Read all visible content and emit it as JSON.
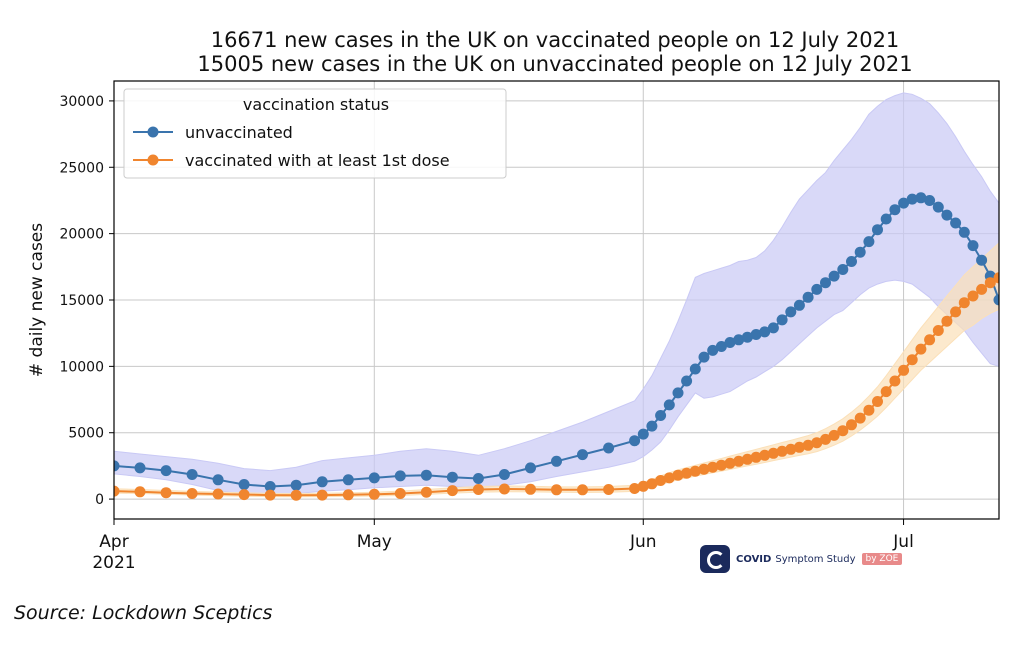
{
  "title": {
    "line1": "16671 new cases in the UK on vaccinated people on 12 July 2021",
    "line2": "15005 new cases in the UK on unvaccinated people on 12 July 2021"
  },
  "source_note": "Source: Lockdown Sceptics",
  "logo": {
    "name": "COVID Symptom Study",
    "brand_prefix": "COVID",
    "brand_rest": "Symptom Study",
    "by": "by ZOE"
  },
  "colors": {
    "unvaccinated": "#3a74ad",
    "vaccinated": "#f0852e",
    "unvaccinated_band": "#c9c9f5",
    "vaccinated_band": "#fbe0b8",
    "grid": "#c8c8c8"
  },
  "chart_data": {
    "type": "line",
    "ylabel": "# daily new cases",
    "xlabel": "",
    "x_tick_labels": [
      {
        "day": 0,
        "label": "Apr",
        "sub": "2021"
      },
      {
        "day": 30,
        "label": "May",
        "sub": ""
      },
      {
        "day": 61,
        "label": "Jun",
        "sub": ""
      },
      {
        "day": 91,
        "label": "Jul",
        "sub": ""
      }
    ],
    "x_range_days_from_apr1": [
      0,
      102
    ],
    "y_ticks": [
      0,
      5000,
      10000,
      15000,
      20000,
      25000,
      30000
    ],
    "ylim": [
      -1500,
      31500
    ],
    "grid": true,
    "legend": {
      "title": "vaccination status",
      "placement": "top-left",
      "entries": [
        "unvaccinated",
        "vaccinated with at least 1st dose"
      ]
    },
    "series": [
      {
        "name": "unvaccinated",
        "color_key": "unvaccinated",
        "x": [
          0,
          3,
          6,
          9,
          12,
          15,
          18,
          21,
          24,
          27,
          30,
          33,
          36,
          39,
          42,
          45,
          48,
          51,
          54,
          57,
          60,
          61,
          62,
          63,
          64,
          65,
          66,
          67,
          68,
          69,
          70,
          71,
          72,
          73,
          74,
          75,
          76,
          77,
          78,
          79,
          80,
          81,
          82,
          83,
          84,
          85,
          86,
          87,
          88,
          89,
          90,
          91,
          92,
          93,
          94,
          95,
          96,
          97,
          98,
          99,
          100,
          101,
          102
        ],
        "y": [
          2500,
          2350,
          2150,
          1850,
          1450,
          1100,
          950,
          1050,
          1300,
          1450,
          1600,
          1750,
          1800,
          1650,
          1550,
          1850,
          2350,
          2850,
          3350,
          3850,
          4400,
          4900,
          5500,
          6300,
          7100,
          8000,
          8900,
          9800,
          10700,
          11200,
          11500,
          11800,
          12000,
          12200,
          12400,
          12600,
          12900,
          13500,
          14100,
          14600,
          15200,
          15800,
          16300,
          16800,
          17300,
          17900,
          18600,
          19400,
          20300,
          21100,
          21800,
          22300,
          22600,
          22700,
          22500,
          22000,
          21400,
          20800,
          20100,
          19100,
          18000,
          16800,
          15005
        ],
        "band_lower": [
          1900,
          1700,
          1450,
          1100,
          650,
          350,
          250,
          400,
          600,
          700,
          850,
          950,
          1050,
          950,
          850,
          1050,
          1300,
          1700,
          2050,
          2400,
          2850,
          3200,
          3700,
          4300,
          5200,
          6200,
          7100,
          8000,
          7600,
          7700,
          7900,
          8100,
          8500,
          8900,
          9200,
          9600,
          10000,
          10500,
          11100,
          11700,
          12300,
          12900,
          13400,
          13900,
          14200,
          14800,
          15400,
          15900,
          16200,
          16400,
          16500,
          16400,
          16200,
          15700,
          15200,
          14500,
          13900,
          13300,
          12700,
          11800,
          11000,
          10200,
          10000
        ],
        "band_upper": [
          3600,
          3400,
          3200,
          3000,
          2700,
          2300,
          2150,
          2400,
          2900,
          3100,
          3300,
          3600,
          3800,
          3600,
          3300,
          3800,
          4400,
          5100,
          5800,
          6600,
          7400,
          8300,
          9300,
          10600,
          11900,
          13400,
          15000,
          16700,
          17000,
          17200,
          17400,
          17600,
          17900,
          18000,
          18200,
          18700,
          19500,
          20500,
          21600,
          22600,
          23300,
          24000,
          24600,
          25500,
          26300,
          27100,
          28000,
          29000,
          29600,
          30100,
          30400,
          30600,
          30500,
          30200,
          29800,
          29100,
          28300,
          27300,
          26200,
          25200,
          24300,
          23200,
          22300
        ]
      },
      {
        "name": "vaccinated with at least 1st dose",
        "color_key": "vaccinated",
        "x": [
          0,
          3,
          6,
          9,
          12,
          15,
          18,
          21,
          24,
          27,
          30,
          33,
          36,
          39,
          42,
          45,
          48,
          51,
          54,
          57,
          60,
          61,
          62,
          63,
          64,
          65,
          66,
          67,
          68,
          69,
          70,
          71,
          72,
          73,
          74,
          75,
          76,
          77,
          78,
          79,
          80,
          81,
          82,
          83,
          84,
          85,
          86,
          87,
          88,
          89,
          90,
          91,
          92,
          93,
          94,
          95,
          96,
          97,
          98,
          99,
          100,
          101,
          102
        ],
        "y": [
          600,
          550,
          480,
          420,
          380,
          340,
          300,
          290,
          300,
          320,
          360,
          420,
          520,
          640,
          720,
          760,
          740,
          700,
          700,
          720,
          800,
          960,
          1150,
          1400,
          1600,
          1800,
          1950,
          2100,
          2250,
          2400,
          2550,
          2700,
          2850,
          3000,
          3150,
          3300,
          3450,
          3600,
          3750,
          3900,
          4050,
          4250,
          4500,
          4800,
          5150,
          5600,
          6100,
          6700,
          7350,
          8100,
          8900,
          9700,
          10500,
          11300,
          12000,
          12700,
          13400,
          14100,
          14800,
          15300,
          15800,
          16300,
          16671
        ],
        "band_lower": [
          450,
          420,
          360,
          300,
          260,
          220,
          190,
          180,
          190,
          200,
          230,
          270,
          350,
          450,
          520,
          560,
          540,
          510,
          500,
          520,
          580,
          720,
          880,
          1100,
          1280,
          1450,
          1600,
          1730,
          1850,
          1980,
          2110,
          2240,
          2370,
          2500,
          2630,
          2760,
          2900,
          3030,
          3160,
          3290,
          3420,
          3580,
          3800,
          4060,
          4360,
          4750,
          5200,
          5700,
          6250,
          6900,
          7600,
          8300,
          9000,
          9700,
          10300,
          10900,
          11500,
          12100,
          12700,
          13100,
          13600,
          14000,
          14300
        ],
        "band_upper": [
          780,
          720,
          650,
          580,
          530,
          480,
          430,
          420,
          440,
          470,
          520,
          600,
          720,
          860,
          950,
          990,
          970,
          920,
          920,
          950,
          1050,
          1250,
          1470,
          1750,
          1980,
          2200,
          2370,
          2540,
          2720,
          2890,
          3060,
          3240,
          3410,
          3580,
          3750,
          3920,
          4090,
          4260,
          4430,
          4600,
          4780,
          5000,
          5300,
          5650,
          6050,
          6550,
          7100,
          7750,
          8450,
          9300,
          10200,
          11100,
          12000,
          12900,
          13700,
          14500,
          15300,
          16100,
          16900,
          17500,
          18100,
          18700,
          19300
        ]
      }
    ]
  }
}
